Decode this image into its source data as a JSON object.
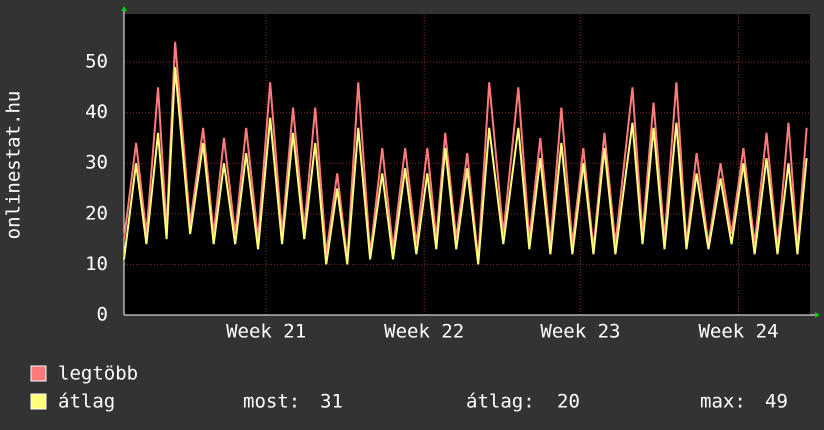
{
  "chart_data": {
    "type": "line",
    "y_label": "onlinestat.hu",
    "x": [
      0.0,
      0.54,
      1.0,
      1.52,
      1.9,
      2.28,
      2.95,
      3.53,
      4.0,
      4.46,
      4.96,
      5.45,
      5.98,
      6.52,
      7.05,
      7.54,
      8.04,
      8.53,
      9.02,
      9.51,
      9.96,
      10.45,
      10.98,
      11.52,
      12.0,
      12.54,
      13.04,
      13.53,
      13.93,
      14.33,
      14.82,
      15.31,
      15.8,
      16.29,
      16.92,
      17.59,
      18.08,
      18.57,
      19.02,
      19.51,
      20.0,
      20.49,
      20.94,
      21.43,
      21.92,
      22.68,
      23.13,
      23.62,
      24.11,
      24.64,
      25.09,
      25.54,
      26.07,
      26.61,
      27.1,
      27.63,
      28.13,
      28.66,
      29.15,
      29.64,
      30.04,
      30.45
    ],
    "series": [
      {
        "name": "legtöbb",
        "color": "#ff7b7b",
        "values": [
          15,
          34,
          16,
          45,
          17,
          54,
          18,
          37,
          16,
          35,
          16,
          37,
          15,
          46,
          16,
          41,
          17,
          41,
          12,
          28,
          11,
          46,
          12,
          33,
          13,
          33,
          14,
          33,
          15,
          36,
          15,
          32,
          11,
          46,
          16,
          45,
          15,
          35,
          14,
          41,
          14,
          33,
          13,
          36,
          14,
          45,
          16,
          42,
          15,
          46,
          14,
          32,
          14,
          30,
          16,
          33,
          14,
          36,
          13,
          38,
          13,
          37
        ]
      },
      {
        "name": "átlag",
        "color": "#ffff7b",
        "values": [
          11,
          30,
          14,
          36,
          15,
          49,
          16,
          34,
          14,
          30,
          14,
          32,
          13,
          39,
          14,
          36,
          15,
          34,
          10,
          25,
          10,
          37,
          11,
          28,
          11,
          29,
          12,
          28,
          13,
          33,
          13,
          29,
          10,
          37,
          14,
          37,
          13,
          31,
          12,
          34,
          12,
          30,
          12,
          33,
          12,
          38,
          14,
          37,
          13,
          38,
          13,
          28,
          13,
          27,
          14,
          30,
          12,
          31,
          12,
          30,
          12,
          31
        ]
      }
    ],
    "xlim": [
      0,
      30.6
    ],
    "xticks": [
      {
        "value": 6.34,
        "label": "Week 21"
      },
      {
        "value": 13.39,
        "label": "Week 22"
      },
      {
        "value": 20.36,
        "label": "Week 23"
      },
      {
        "value": 27.41,
        "label": "Week 24"
      }
    ],
    "ylim": [
      0,
      59.5
    ],
    "yticks": [
      0,
      10,
      20,
      30,
      40,
      50
    ],
    "grid": true,
    "stats": [
      {
        "label": "most:",
        "value": 31
      },
      {
        "label": "átlag:",
        "value": 20
      },
      {
        "label": "max:",
        "value": 49
      }
    ]
  }
}
